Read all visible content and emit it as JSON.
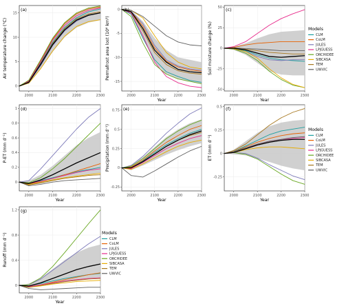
{
  "colors": {
    "CLM": "#1b9e9e",
    "CoLM": "#e66100",
    "JULES": "#7b78b8",
    "LPJGUESS": "#e7298a",
    "ORCHIDEE": "#66a61e",
    "SIBCASA": "#e6ab02",
    "TEM": "#a6761d",
    "UWVIC": "#5e5e5e",
    "mean": "#000000",
    "spread": "#c8c8c8"
  },
  "legend": {
    "title": "Models",
    "items": [
      "CLM",
      "CoLM",
      "JULES",
      "LPJGUESS",
      "ORCHIDEE",
      "SIBCASA",
      "TEM",
      "UWVIC"
    ]
  },
  "chart_data": [
    {
      "type": "line",
      "tag": "(a)",
      "xlabel": "",
      "ylabel": "Air temperature change (°C)",
      "xlim": [
        1960,
        2300
      ],
      "ylim": [
        -1,
        16.5
      ],
      "xticks": [
        2000,
        2100,
        2200,
        2300
      ],
      "yticks": [
        0,
        5,
        10,
        15
      ],
      "x": [
        1960,
        2000,
        2050,
        2100,
        2150,
        2200,
        2250,
        2300
      ],
      "mean": [
        0,
        0.8,
        4.5,
        8.5,
        11.5,
        13.5,
        14.5,
        15
      ],
      "band_low": [
        0,
        0.5,
        3.5,
        7,
        10,
        12,
        13,
        13.5
      ],
      "band_high": [
        0,
        1.2,
        5.5,
        10,
        13,
        15,
        16,
        16.3
      ],
      "series": [
        {
          "name": "CLM",
          "values": [
            0,
            0.9,
            4.8,
            9,
            12,
            14,
            15.2,
            15.8
          ]
        },
        {
          "name": "CoLM",
          "values": [
            0,
            1.1,
            5.2,
            9.6,
            12.8,
            14.8,
            15.8,
            16.2
          ]
        },
        {
          "name": "JULES",
          "values": [
            0,
            0.7,
            4.2,
            8.3,
            11.3,
            13.3,
            14.5,
            15
          ]
        },
        {
          "name": "LPJGUESS",
          "values": [
            0,
            1,
            5,
            9.4,
            12.4,
            14.4,
            15.5,
            16
          ]
        },
        {
          "name": "ORCHIDEE",
          "values": [
            0,
            1.2,
            5.4,
            9.8,
            13,
            15,
            16,
            16.4
          ]
        },
        {
          "name": "SIBCASA",
          "values": [
            0,
            0.6,
            3.6,
            7.2,
            10.2,
            12.2,
            13.2,
            13.6
          ]
        },
        {
          "name": "TEM",
          "values": [
            0,
            0.8,
            4.6,
            8.8,
            11.8,
            13.8,
            14.8,
            15.2
          ]
        },
        {
          "name": "UWVIC",
          "values": [
            0,
            0.7,
            4.4,
            8.6,
            11.6,
            13.6,
            14.6,
            15
          ]
        }
      ]
    },
    {
      "type": "line",
      "tag": "(b)",
      "xlabel": "Year",
      "ylabel": "Permafrost area lost (10⁶ km²)",
      "xlim": [
        1960,
        2300
      ],
      "ylim": [
        -17,
        0.8
      ],
      "xticks": [
        2000,
        2100,
        2200,
        2300
      ],
      "yticks": [
        0,
        -5,
        -10,
        -15
      ],
      "x": [
        1960,
        2000,
        2050,
        2100,
        2150,
        2200,
        2250,
        2300
      ],
      "mean": [
        0,
        -0.5,
        -4,
        -8.5,
        -11,
        -12.5,
        -13,
        -13.2
      ],
      "band_low": [
        0,
        -1,
        -6,
        -11,
        -13.5,
        -14.5,
        -15,
        -15.5
      ],
      "band_high": [
        0,
        -0.2,
        -2.5,
        -6,
        -8.5,
        -10,
        -10.5,
        -11
      ],
      "series": [
        {
          "name": "CLM",
          "values": [
            0,
            -1,
            -6,
            -10.5,
            -13,
            -14,
            -14.8,
            -15.2
          ]
        },
        {
          "name": "CoLM",
          "values": [
            0,
            -0.4,
            -3.5,
            -8,
            -10.8,
            -12,
            -12.6,
            -12.9
          ]
        },
        {
          "name": "JULES",
          "values": [
            0,
            -0.4,
            -3,
            -7.5,
            -10.5,
            -11.8,
            -12.4,
            -12.7
          ]
        },
        {
          "name": "LPJGUESS",
          "values": [
            0,
            -0.8,
            -5.5,
            -11,
            -14,
            -15.3,
            -16,
            -16.3
          ]
        },
        {
          "name": "ORCHIDEE",
          "values": [
            0,
            -1.5,
            -7,
            -11.5,
            -13.5,
            -14.5,
            -15,
            -15.5
          ]
        },
        {
          "name": "SIBCASA",
          "values": [
            0,
            -0.2,
            -1.8,
            -5.5,
            -9,
            -11,
            -12,
            -12.4
          ]
        },
        {
          "name": "TEM",
          "values": [
            0,
            -0.6,
            -4.5,
            -9,
            -11.5,
            -12.8,
            -13.3,
            -13.5
          ]
        },
        {
          "name": "UWVIC",
          "values": [
            0,
            -0.2,
            -1.5,
            -3.5,
            -5.5,
            -6.8,
            -7.4,
            -7.6
          ]
        }
      ]
    },
    {
      "type": "line",
      "tag": "(c)",
      "xlabel": "Year",
      "ylabel": "Soil moisture change (%)",
      "xlim": [
        1960,
        2300
      ],
      "ylim": [
        -52,
        52
      ],
      "xticks": [
        2000,
        2100,
        2200,
        2300
      ],
      "yticks": [
        50,
        25,
        0,
        -25,
        -50
      ],
      "x": [
        1960,
        2000,
        2050,
        2100,
        2150,
        2200,
        2250,
        2300
      ],
      "mean": [
        0,
        0,
        -2,
        -6,
        -10,
        -11,
        -10,
        -9
      ],
      "band_low": [
        0,
        -2,
        -8,
        -18,
        -28,
        -32,
        -33,
        -33
      ],
      "band_high": [
        0,
        2,
        6,
        12,
        17,
        20,
        21,
        22
      ],
      "series": [
        {
          "name": "CLM",
          "values": [
            0,
            -0.5,
            -3,
            -8,
            -12,
            -14,
            -15,
            -16
          ]
        },
        {
          "name": "CoLM",
          "values": [
            0,
            1,
            4,
            6,
            7,
            8,
            8,
            8
          ]
        },
        {
          "name": "JULES",
          "values": [
            0,
            -1,
            -4,
            -10,
            -14,
            -15,
            -14,
            -14
          ]
        },
        {
          "name": "LPJGUESS",
          "values": [
            0,
            2,
            8,
            18,
            28,
            36,
            42,
            47
          ]
        },
        {
          "name": "ORCHIDEE",
          "values": [
            0,
            -1,
            -6,
            -15,
            -28,
            -38,
            -45,
            -48
          ]
        },
        {
          "name": "SIBCASA",
          "values": [
            0,
            -0.5,
            -4,
            -12,
            -25,
            -36,
            -44,
            -48
          ]
        },
        {
          "name": "TEM",
          "values": [
            0,
            0,
            -1,
            -3,
            -5,
            -6,
            -7,
            -7
          ]
        },
        {
          "name": "UWVIC",
          "values": [
            0,
            0.5,
            -0.5,
            -1,
            -2,
            -3,
            -3,
            -3
          ]
        }
      ]
    },
    {
      "type": "line",
      "tag": "(d)",
      "xlabel": "Year",
      "ylabel": "P-ET (mm d⁻¹)",
      "xlim": [
        1960,
        2300
      ],
      "ylim": [
        -0.12,
        1.05
      ],
      "xticks": [
        2000,
        2100,
        2200,
        2300
      ],
      "yticks": [
        0,
        0.2,
        0.4,
        0.6,
        0.8,
        1
      ],
      "x": [
        1960,
        2000,
        2050,
        2100,
        2150,
        2200,
        2250,
        2300
      ],
      "mean": [
        0,
        -0.02,
        0.03,
        0.1,
        0.18,
        0.26,
        0.33,
        0.4
      ],
      "band_low": [
        0,
        -0.04,
        -0.02,
        0.02,
        0.05,
        0.08,
        0.1,
        0.12
      ],
      "band_high": [
        0,
        0.02,
        0.1,
        0.22,
        0.36,
        0.5,
        0.6,
        0.68
      ],
      "series": [
        {
          "name": "CLM",
          "values": [
            0,
            -0.02,
            0.02,
            0.06,
            0.1,
            0.14,
            0.17,
            0.2
          ]
        },
        {
          "name": "CoLM",
          "values": [
            0,
            -0.03,
            0.01,
            0.05,
            0.1,
            0.15,
            0.2,
            0.25
          ]
        },
        {
          "name": "JULES",
          "values": [
            0,
            0.02,
            0.18,
            0.36,
            0.54,
            0.72,
            0.88,
            1
          ]
        },
        {
          "name": "LPJGUESS",
          "values": [
            0,
            -0.02,
            0.01,
            0.05,
            0.09,
            0.13,
            0.16,
            0.18
          ]
        },
        {
          "name": "ORCHIDEE",
          "values": [
            0,
            -0.01,
            0.06,
            0.18,
            0.32,
            0.48,
            0.64,
            0.8
          ]
        },
        {
          "name": "SIBCASA",
          "values": [
            0,
            -0.03,
            0,
            0.03,
            0.06,
            0.08,
            0.1,
            0.12
          ]
        },
        {
          "name": "TEM",
          "values": [
            0,
            -0.04,
            -0.01,
            0.02,
            0.05,
            0.07,
            0.09,
            0.1
          ]
        },
        {
          "name": "UWVIC",
          "values": [
            0,
            -0.05,
            -0.03,
            0,
            0.02,
            0.03,
            0.04,
            0.05
          ]
        }
      ]
    },
    {
      "type": "line",
      "tag": "(e)",
      "xlabel": "Year",
      "ylabel": "Precipitation (mm d⁻¹)",
      "xlim": [
        1960,
        2300
      ],
      "ylim": [
        -0.3,
        0.82
      ],
      "xticks": [
        2000,
        2100,
        2200,
        2300
      ],
      "yticks": [
        -0.25,
        0,
        0.25,
        0.5,
        0.75
      ],
      "x": [
        1960,
        2000,
        2050,
        2100,
        2150,
        2200,
        2250,
        2300
      ],
      "mean": [
        0,
        0,
        0.08,
        0.18,
        0.28,
        0.36,
        0.43,
        0.48
      ],
      "band_low": [
        0,
        -0.03,
        0.03,
        0.1,
        0.17,
        0.23,
        0.28,
        0.32
      ],
      "band_high": [
        0,
        0.04,
        0.14,
        0.27,
        0.4,
        0.5,
        0.58,
        0.63
      ],
      "series": [
        {
          "name": "CLM",
          "values": [
            0,
            0,
            0.09,
            0.2,
            0.3,
            0.38,
            0.45,
            0.5
          ]
        },
        {
          "name": "CoLM",
          "values": [
            0,
            0.01,
            0.1,
            0.22,
            0.33,
            0.42,
            0.5,
            0.55
          ]
        },
        {
          "name": "JULES",
          "values": [
            0,
            0.03,
            0.15,
            0.3,
            0.45,
            0.58,
            0.7,
            0.78
          ]
        },
        {
          "name": "LPJGUESS",
          "values": [
            0,
            -0.01,
            0.07,
            0.16,
            0.25,
            0.32,
            0.38,
            0.42
          ]
        },
        {
          "name": "ORCHIDEE",
          "values": [
            0,
            0.02,
            0.12,
            0.25,
            0.38,
            0.48,
            0.56,
            0.62
          ]
        },
        {
          "name": "SIBCASA",
          "values": [
            0,
            -0.02,
            0.05,
            0.13,
            0.21,
            0.28,
            0.33,
            0.36
          ]
        },
        {
          "name": "TEM",
          "values": [
            0,
            0,
            0.08,
            0.18,
            0.28,
            0.36,
            0.42,
            0.46
          ]
        },
        {
          "name": "UWVIC",
          "values": [
            0,
            -0.1,
            -0.12,
            -0.04,
            0.05,
            0.14,
            0.22,
            0.28
          ]
        }
      ]
    },
    {
      "type": "line",
      "tag": "(f)",
      "xlabel": "Year",
      "ylabel": "ET (mm d⁻¹)",
      "xlim": [
        1960,
        2300
      ],
      "ylim": [
        -0.4,
        0.52
      ],
      "xticks": [
        2000,
        2100,
        2200,
        2300
      ],
      "yticks": [
        0.5,
        0.25,
        0,
        -0.25
      ],
      "x": [
        1960,
        2000,
        2050,
        2100,
        2150,
        2200,
        2250,
        2300
      ],
      "mean": [
        0,
        0.01,
        0.05,
        0.09,
        0.12,
        0.14,
        0.15,
        0.15
      ],
      "band_low": [
        0,
        -0.01,
        -0.02,
        -0.05,
        -0.09,
        -0.13,
        -0.16,
        -0.18
      ],
      "band_high": [
        0,
        0.04,
        0.13,
        0.22,
        0.29,
        0.33,
        0.35,
        0.36
      ],
      "series": [
        {
          "name": "CLM",
          "values": [
            0,
            0.02,
            0.08,
            0.14,
            0.2,
            0.24,
            0.26,
            0.28
          ]
        },
        {
          "name": "CoLM",
          "values": [
            0,
            0.02,
            0.07,
            0.12,
            0.16,
            0.19,
            0.21,
            0.22
          ]
        },
        {
          "name": "JULES",
          "values": [
            0,
            0.01,
            0,
            -0.05,
            -0.12,
            -0.18,
            -0.24,
            -0.28
          ]
        },
        {
          "name": "LPJGUESS",
          "values": [
            0,
            0.01,
            0.05,
            0.1,
            0.13,
            0.15,
            0.16,
            0.17
          ]
        },
        {
          "name": "ORCHIDEE",
          "values": [
            0,
            0.01,
            -0.01,
            -0.06,
            -0.14,
            -0.22,
            -0.29,
            -0.33
          ]
        },
        {
          "name": "SIBCASA",
          "values": [
            0,
            0.01,
            0.04,
            0.06,
            0.07,
            0.07,
            0.06,
            0.05
          ]
        },
        {
          "name": "TEM",
          "values": [
            0,
            0.03,
            0.1,
            0.2,
            0.3,
            0.38,
            0.44,
            0.48
          ]
        },
        {
          "name": "UWVIC",
          "values": [
            0,
            0.02,
            0.06,
            0.1,
            0.13,
            0.15,
            0.17,
            0.18
          ]
        }
      ]
    },
    {
      "type": "line",
      "tag": "(g)",
      "xlabel": "Year",
      "ylabel": "Runoff (mm d⁻¹)",
      "xlim": [
        1960,
        2300
      ],
      "ylim": [
        -0.12,
        1.25
      ],
      "xticks": [
        2000,
        2100,
        2200,
        2300
      ],
      "yticks": [
        0,
        0.4,
        0.8,
        1.2
      ],
      "x": [
        1960,
        2000,
        2050,
        2100,
        2150,
        2200,
        2250,
        2300
      ],
      "mean": [
        0,
        -0.01,
        0.04,
        0.11,
        0.18,
        0.25,
        0.3,
        0.34
      ],
      "band_low": [
        0,
        -0.03,
        -0.01,
        0.02,
        0.05,
        0.08,
        0.1,
        0.11
      ],
      "band_high": [
        0,
        0.03,
        0.12,
        0.26,
        0.4,
        0.52,
        0.6,
        0.65
      ],
      "series": [
        {
          "name": "CLM",
          "values": [
            0,
            -0.01,
            0.03,
            0.07,
            0.11,
            0.14,
            0.17,
            0.19
          ]
        },
        {
          "name": "CoLM",
          "values": [
            0,
            -0.02,
            0.01,
            0.05,
            0.09,
            0.13,
            0.17,
            0.2
          ]
        },
        {
          "name": "JULES",
          "values": [
            0,
            0.01,
            0.1,
            0.24,
            0.38,
            0.52,
            0.66,
            0.78
          ]
        },
        {
          "name": "LPJGUESS",
          "values": [
            0,
            -0.02,
            0.01,
            0.04,
            0.07,
            0.09,
            0.11,
            0.12
          ]
        },
        {
          "name": "ORCHIDEE",
          "values": [
            0,
            0.01,
            0.12,
            0.3,
            0.52,
            0.75,
            0.98,
            1.2
          ]
        },
        {
          "name": "SIBCASA",
          "values": [
            0,
            -0.03,
            -0.01,
            0.02,
            0.04,
            0.06,
            0.07,
            0.08
          ]
        },
        {
          "name": "TEM",
          "values": [
            0,
            -0.03,
            0,
            0.03,
            0.06,
            0.08,
            0.1,
            0.11
          ]
        },
        {
          "name": "UWVIC",
          "values": [
            0,
            -0.05,
            -0.07,
            -0.06,
            -0.05,
            -0.04,
            -0.03,
            -0.03
          ]
        }
      ]
    }
  ]
}
